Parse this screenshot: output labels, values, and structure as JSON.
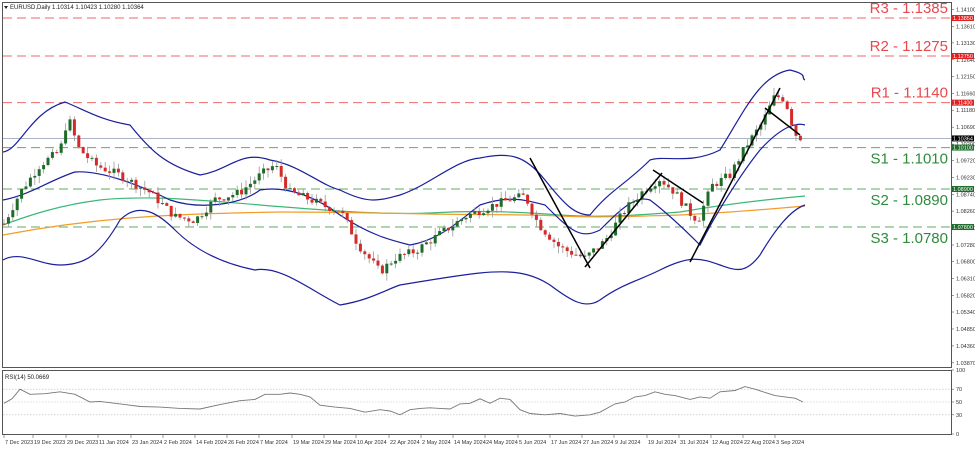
{
  "window": {
    "title": "EURUSD,Daily",
    "ohlc": "1.10314 1.10423 1.10280 1.10364"
  },
  "chart_data": {
    "type": "candlestick",
    "title": "EURUSD,Daily  1.10314 1.10423 1.10280 1.10364",
    "symbol": "EURUSD",
    "timeframe": "Daily",
    "ohlc_last": {
      "open": 1.10314,
      "high": 1.10423,
      "low": 1.1028,
      "close": 1.10364
    },
    "current_price": 1.10364,
    "ylim": [
      1.0387,
      1.141
    ],
    "price_axis_ticks": [
      "1.14100",
      "1.13610",
      "1.13130",
      "1.12640",
      "1.12150",
      "1.11660",
      "1.11180",
      "1.10690",
      "1.10200",
      "1.09720",
      "1.09230",
      "1.08740",
      "1.08260",
      "1.07770",
      "1.07280",
      "1.06800",
      "1.06310",
      "1.05820",
      "1.05340",
      "1.04850",
      "1.04360",
      "1.03870"
    ],
    "levels": [
      {
        "name": "R3",
        "value": 1.1385,
        "label": "R3 - 1.1385",
        "tag": "1.13850",
        "type": "resistance"
      },
      {
        "name": "R2",
        "value": 1.1275,
        "label": "R2 - 1.1275",
        "tag": "1.12750",
        "type": "resistance"
      },
      {
        "name": "R1",
        "value": 1.114,
        "label": "R1 - 1.1140",
        "tag": "1.11400",
        "type": "resistance"
      },
      {
        "name": "S1",
        "value": 1.101,
        "label": "S1 - 1.1010",
        "tag": "1.10100",
        "type": "support"
      },
      {
        "name": "S2",
        "value": 1.089,
        "label": "S2 - 1.0890",
        "tag": "1.08900",
        "type": "support"
      },
      {
        "name": "S3",
        "value": 1.078,
        "label": "S3 - 1.0780",
        "tag": "1.07800",
        "type": "support"
      }
    ],
    "current_price_tag": "1.10364",
    "x_tick_labels": [
      "7 Dec 2023",
      "19 Dec 2023",
      "29 Dec 2023",
      "11 Jan 2024",
      "23 Jan 2024",
      "2 Feb 2024",
      "14 Feb 2024",
      "26 Feb 2024",
      "7 Mar 2024",
      "19 Mar 2024",
      "29 Mar 2024",
      "10 Apr 2024",
      "22 Apr 2024",
      "2 May 2024",
      "14 May 2024",
      "24 May 2024",
      "5 Jun 2024",
      "17 Jun 2024",
      "27 Jun 2024",
      "9 Jul 2024",
      "19 Jul 2024",
      "31 Jul 2024",
      "12 Aug 2024",
      "22 Aug 2024",
      "3 Sep 2024"
    ],
    "indicators": [
      {
        "name": "Bollinger Bands",
        "color": "#1a1f9c"
      },
      {
        "name": "MA (green)",
        "color": "#3cb878"
      },
      {
        "name": "MA (orange)",
        "color": "#f39c2a"
      },
      {
        "name": "Trendlines",
        "color": "#000000"
      }
    ],
    "rsi": {
      "label": "RSI(14) 50.0669",
      "period": 14,
      "value": 50.0669,
      "ylim": [
        0,
        100
      ],
      "levels": [
        30,
        50,
        70
      ],
      "axis_ticks": [
        "100",
        "70",
        "50",
        "30",
        "0"
      ]
    },
    "colors": {
      "bull": "#1e6b2a",
      "bear": "#d42a2a",
      "resistance": "#f06a6a",
      "support": "#5fae5f",
      "current_line": "#aab4c4"
    }
  }
}
